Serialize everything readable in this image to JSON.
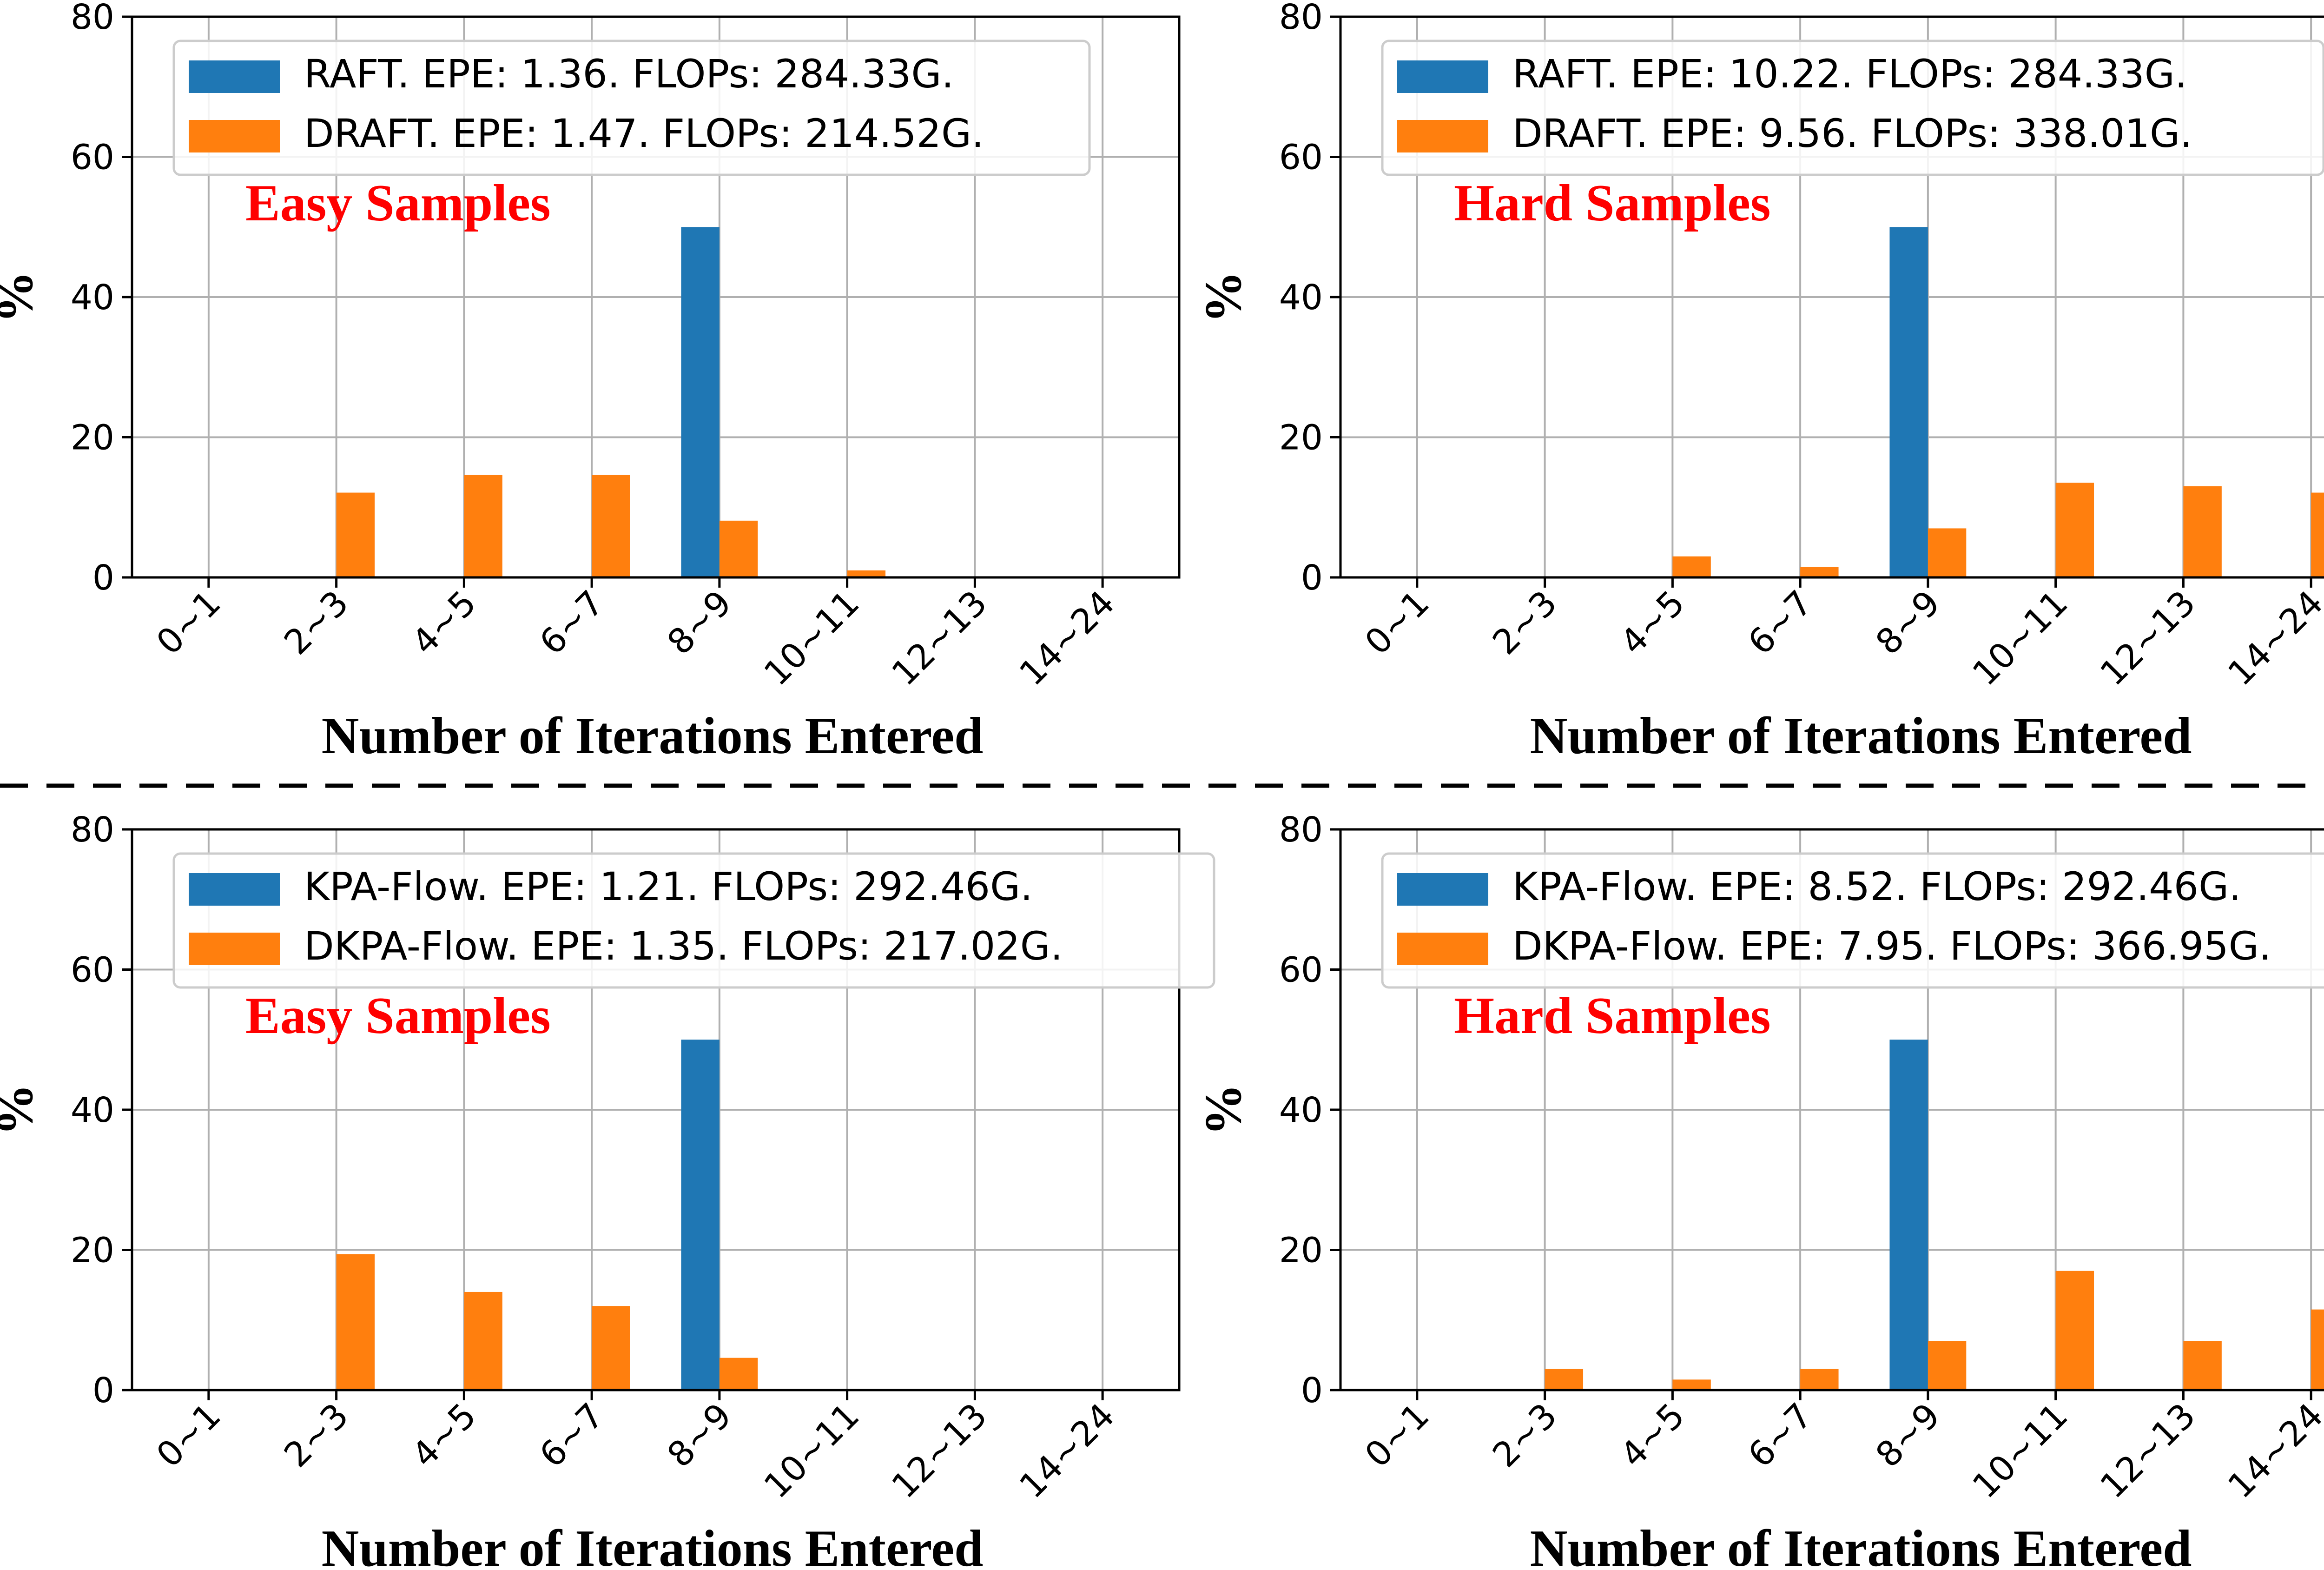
{
  "chart_data": [
    {
      "type": "bar",
      "position": "top-left",
      "categories": [
        "0~1",
        "2~3",
        "4~5",
        "6~7",
        "8~9",
        "10~11",
        "12~13",
        "14~24"
      ],
      "series": [
        {
          "name": "RAFT. EPE: 1.36. FLOPs: 284.33G.",
          "color": "#1f77b4",
          "values": [
            0,
            0,
            0,
            0,
            50,
            0,
            0,
            0
          ]
        },
        {
          "name": "DRAFT. EPE: 1.47. FLOPs: 214.52G.",
          "color": "#ff7f0e",
          "values": [
            0,
            12.1,
            14.6,
            14.6,
            8.1,
            1.0,
            0,
            0
          ]
        }
      ],
      "annotation": "Easy Samples",
      "annotation_color": "#ff0000",
      "xlabel": "Number of Iterations Entered",
      "ylabel": "%",
      "ylim": [
        0,
        80
      ],
      "yticks": [
        "0",
        "20",
        "40",
        "60",
        "80"
      ],
      "grid": true,
      "legend": "top-left"
    },
    {
      "type": "bar",
      "position": "top-right",
      "categories": [
        "0~1",
        "2~3",
        "4~5",
        "6~7",
        "8~9",
        "10~11",
        "12~13",
        "14~24"
      ],
      "series": [
        {
          "name": "RAFT. EPE: 10.22. FLOPs: 284.33G.",
          "color": "#1f77b4",
          "values": [
            0,
            0,
            0,
            0,
            50,
            0,
            0,
            0
          ]
        },
        {
          "name": "DRAFT. EPE: 9.56. FLOPs: 338.01G.",
          "color": "#ff7f0e",
          "values": [
            0,
            0,
            3.0,
            1.5,
            7.0,
            13.5,
            13.0,
            12.1
          ]
        }
      ],
      "annotation": "Hard Samples",
      "annotation_color": "#ff0000",
      "xlabel": "Number of Iterations Entered",
      "ylabel": "%",
      "ylim": [
        0,
        80
      ],
      "yticks": [
        "0",
        "20",
        "40",
        "60",
        "80"
      ],
      "grid": true,
      "legend": "top-left"
    },
    {
      "type": "bar",
      "position": "bottom-left",
      "categories": [
        "0~1",
        "2~3",
        "4~5",
        "6~7",
        "8~9",
        "10~11",
        "12~13",
        "14~24"
      ],
      "series": [
        {
          "name": "KPA-Flow. EPE: 1.21. FLOPs: 292.46G.",
          "color": "#1f77b4",
          "values": [
            0,
            0,
            0,
            0,
            50,
            0,
            0,
            0
          ]
        },
        {
          "name": "DKPA-Flow. EPE: 1.35. FLOPs: 217.02G.",
          "color": "#ff7f0e",
          "values": [
            0,
            19.4,
            14.0,
            12.0,
            4.6,
            0,
            0,
            0
          ]
        }
      ],
      "annotation": "Easy Samples",
      "annotation_color": "#ff0000",
      "xlabel": "Number of Iterations Entered",
      "ylabel": "%",
      "ylim": [
        0,
        80
      ],
      "yticks": [
        "0",
        "20",
        "40",
        "60",
        "80"
      ],
      "grid": true,
      "legend": "top-left"
    },
    {
      "type": "bar",
      "position": "bottom-right",
      "categories": [
        "0~1",
        "2~3",
        "4~5",
        "6~7",
        "8~9",
        "10~11",
        "12~13",
        "14~24"
      ],
      "series": [
        {
          "name": "KPA-Flow. EPE: 8.52. FLOPs: 292.46G.",
          "color": "#1f77b4",
          "values": [
            0,
            0,
            0,
            0,
            50,
            0,
            0,
            0
          ]
        },
        {
          "name": "DKPA-Flow. EPE: 7.95. FLOPs: 366.95G.",
          "color": "#ff7f0e",
          "values": [
            0,
            3.0,
            1.5,
            3.0,
            7.0,
            17.0,
            7.0,
            11.5
          ]
        }
      ],
      "annotation": "Hard Samples",
      "annotation_color": "#ff0000",
      "xlabel": "Number of Iterations Entered",
      "ylabel": "%",
      "ylim": [
        0,
        80
      ],
      "yticks": [
        "0",
        "20",
        "40",
        "60",
        "80"
      ],
      "grid": true,
      "legend": "top-left"
    }
  ]
}
